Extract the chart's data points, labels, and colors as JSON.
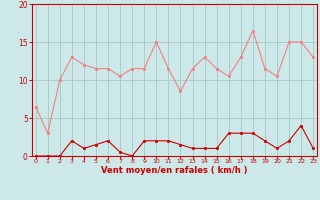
{
  "hours": [
    0,
    1,
    2,
    3,
    4,
    5,
    6,
    7,
    8,
    9,
    10,
    11,
    12,
    13,
    14,
    15,
    16,
    17,
    18,
    19,
    20,
    21,
    22,
    23
  ],
  "rafales": [
    6.5,
    3.0,
    10.0,
    13.0,
    12.0,
    11.5,
    11.5,
    10.5,
    11.5,
    11.5,
    15.0,
    11.5,
    8.5,
    11.5,
    13.0,
    11.5,
    10.5,
    13.0,
    16.5,
    11.5,
    10.5,
    15.0,
    15.0,
    13.0
  ],
  "moyen": [
    0.0,
    0.0,
    0.0,
    2.0,
    1.0,
    1.5,
    2.0,
    0.5,
    0.0,
    2.0,
    2.0,
    2.0,
    1.5,
    1.0,
    1.0,
    1.0,
    3.0,
    3.0,
    3.0,
    2.0,
    1.0,
    2.0,
    4.0,
    1.0
  ],
  "bg_color": "#cde8e8",
  "line_color_rafales": "#f08080",
  "line_color_moyen": "#cc0000",
  "grid_color": "#aacccc",
  "tick_color": "#cc0000",
  "spine_color": "#cc0000",
  "xlabel": "Vent moyen/en rafales ( km/h )",
  "xlabel_color": "#cc0000",
  "ylim": [
    0,
    20
  ],
  "yticks": [
    0,
    5,
    10,
    15,
    20
  ],
  "xticks": [
    0,
    1,
    2,
    3,
    4,
    5,
    6,
    7,
    8,
    9,
    10,
    11,
    12,
    13,
    14,
    15,
    16,
    17,
    18,
    19,
    20,
    21,
    22,
    23
  ],
  "xlim": [
    -0.3,
    23.3
  ]
}
